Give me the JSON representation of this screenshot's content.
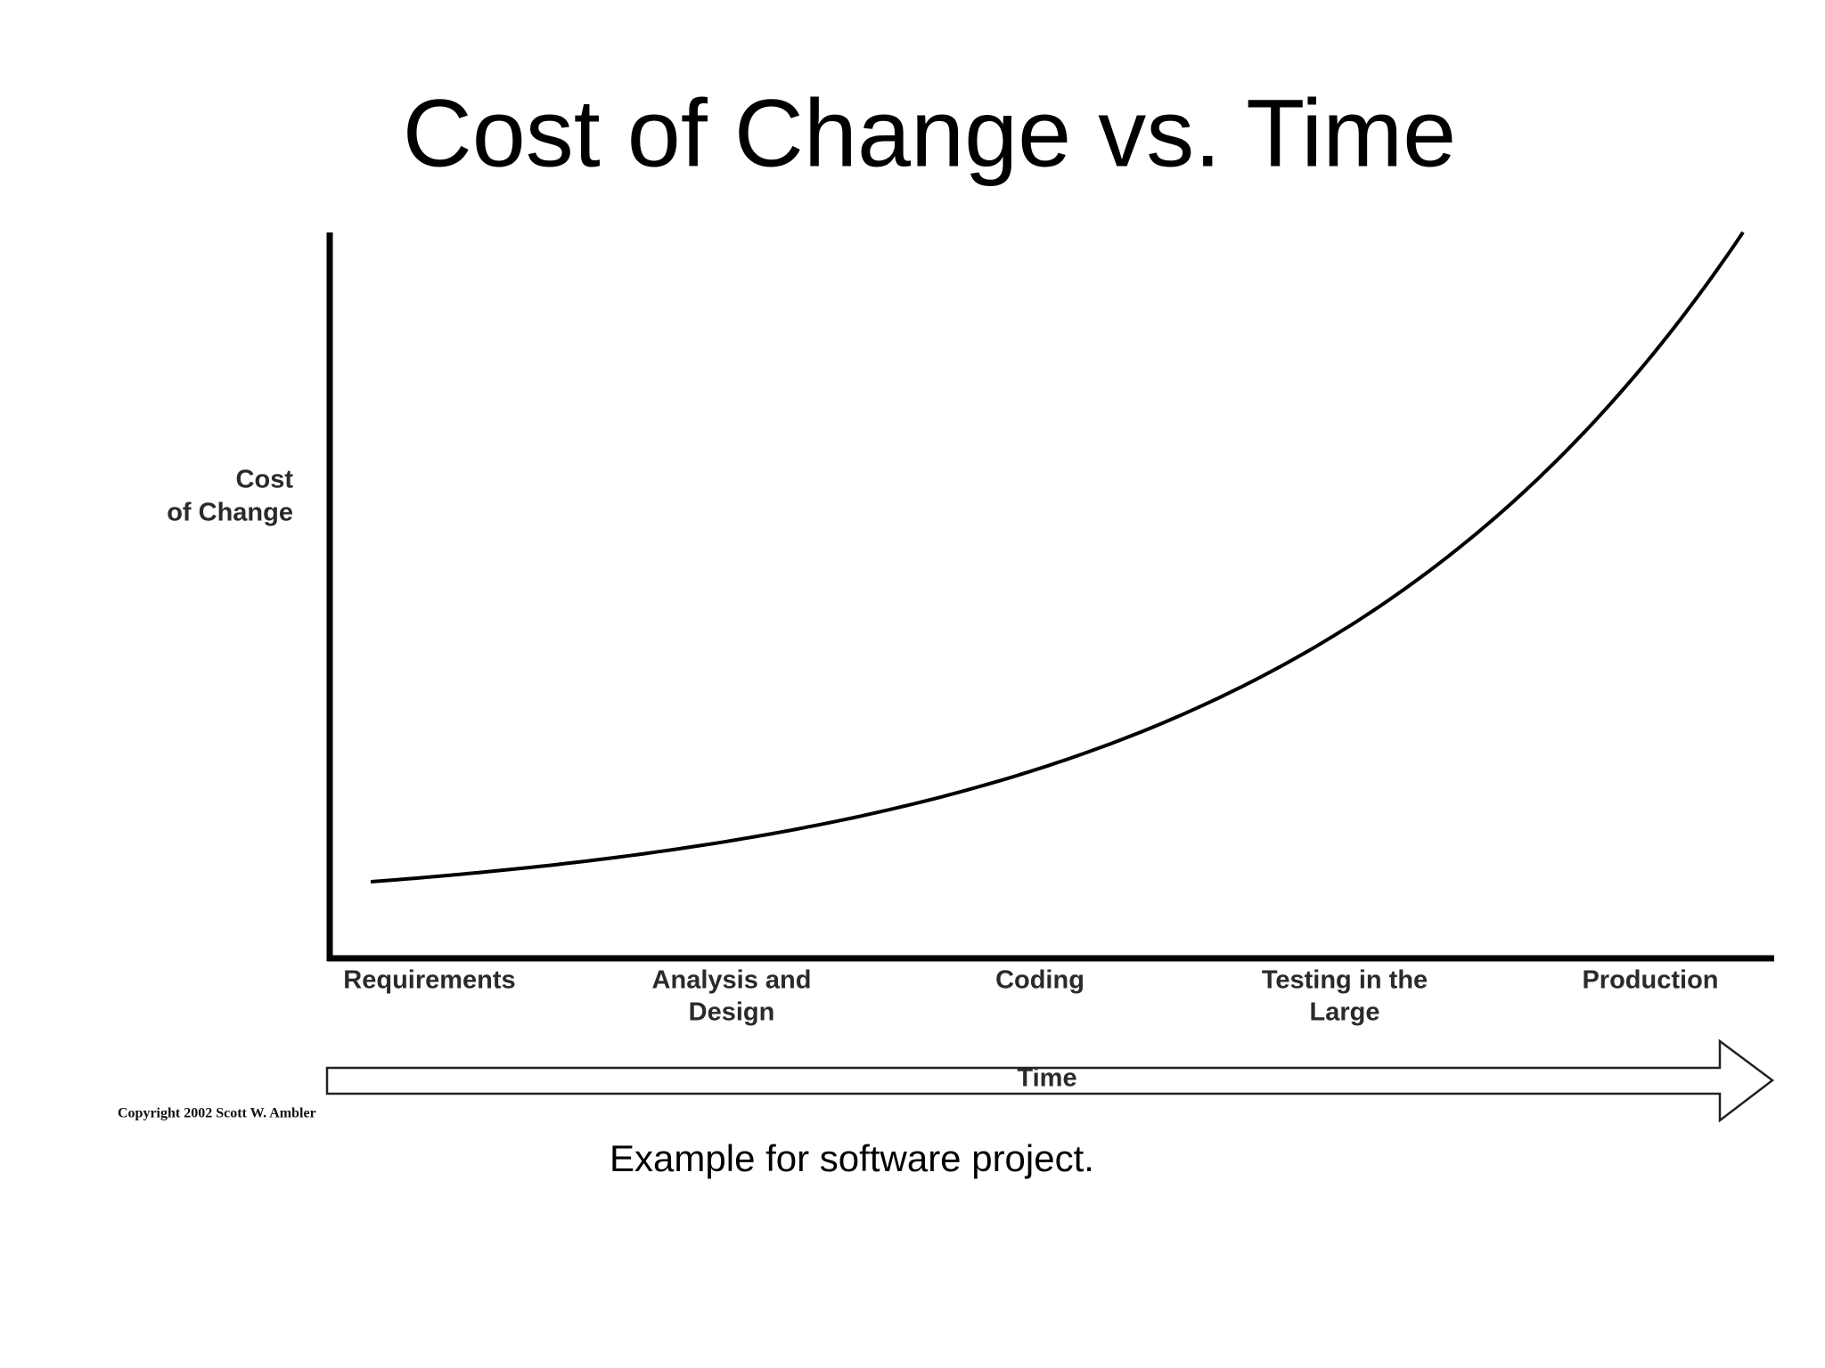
{
  "title": "Cost of Change vs. Time",
  "y_axis_label": [
    "Cost",
    "of Change"
  ],
  "stages": [
    {
      "lines": [
        "Requirements"
      ]
    },
    {
      "lines": [
        "Analysis and",
        "Design"
      ]
    },
    {
      "lines": [
        "Coding"
      ]
    },
    {
      "lines": [
        "Testing in the",
        "Large"
      ]
    },
    {
      "lines": [
        "Production"
      ]
    }
  ],
  "arrow_label": "Time",
  "copyright": "Copyright 2002 Scott W. Ambler",
  "caption": "Example for software project."
}
